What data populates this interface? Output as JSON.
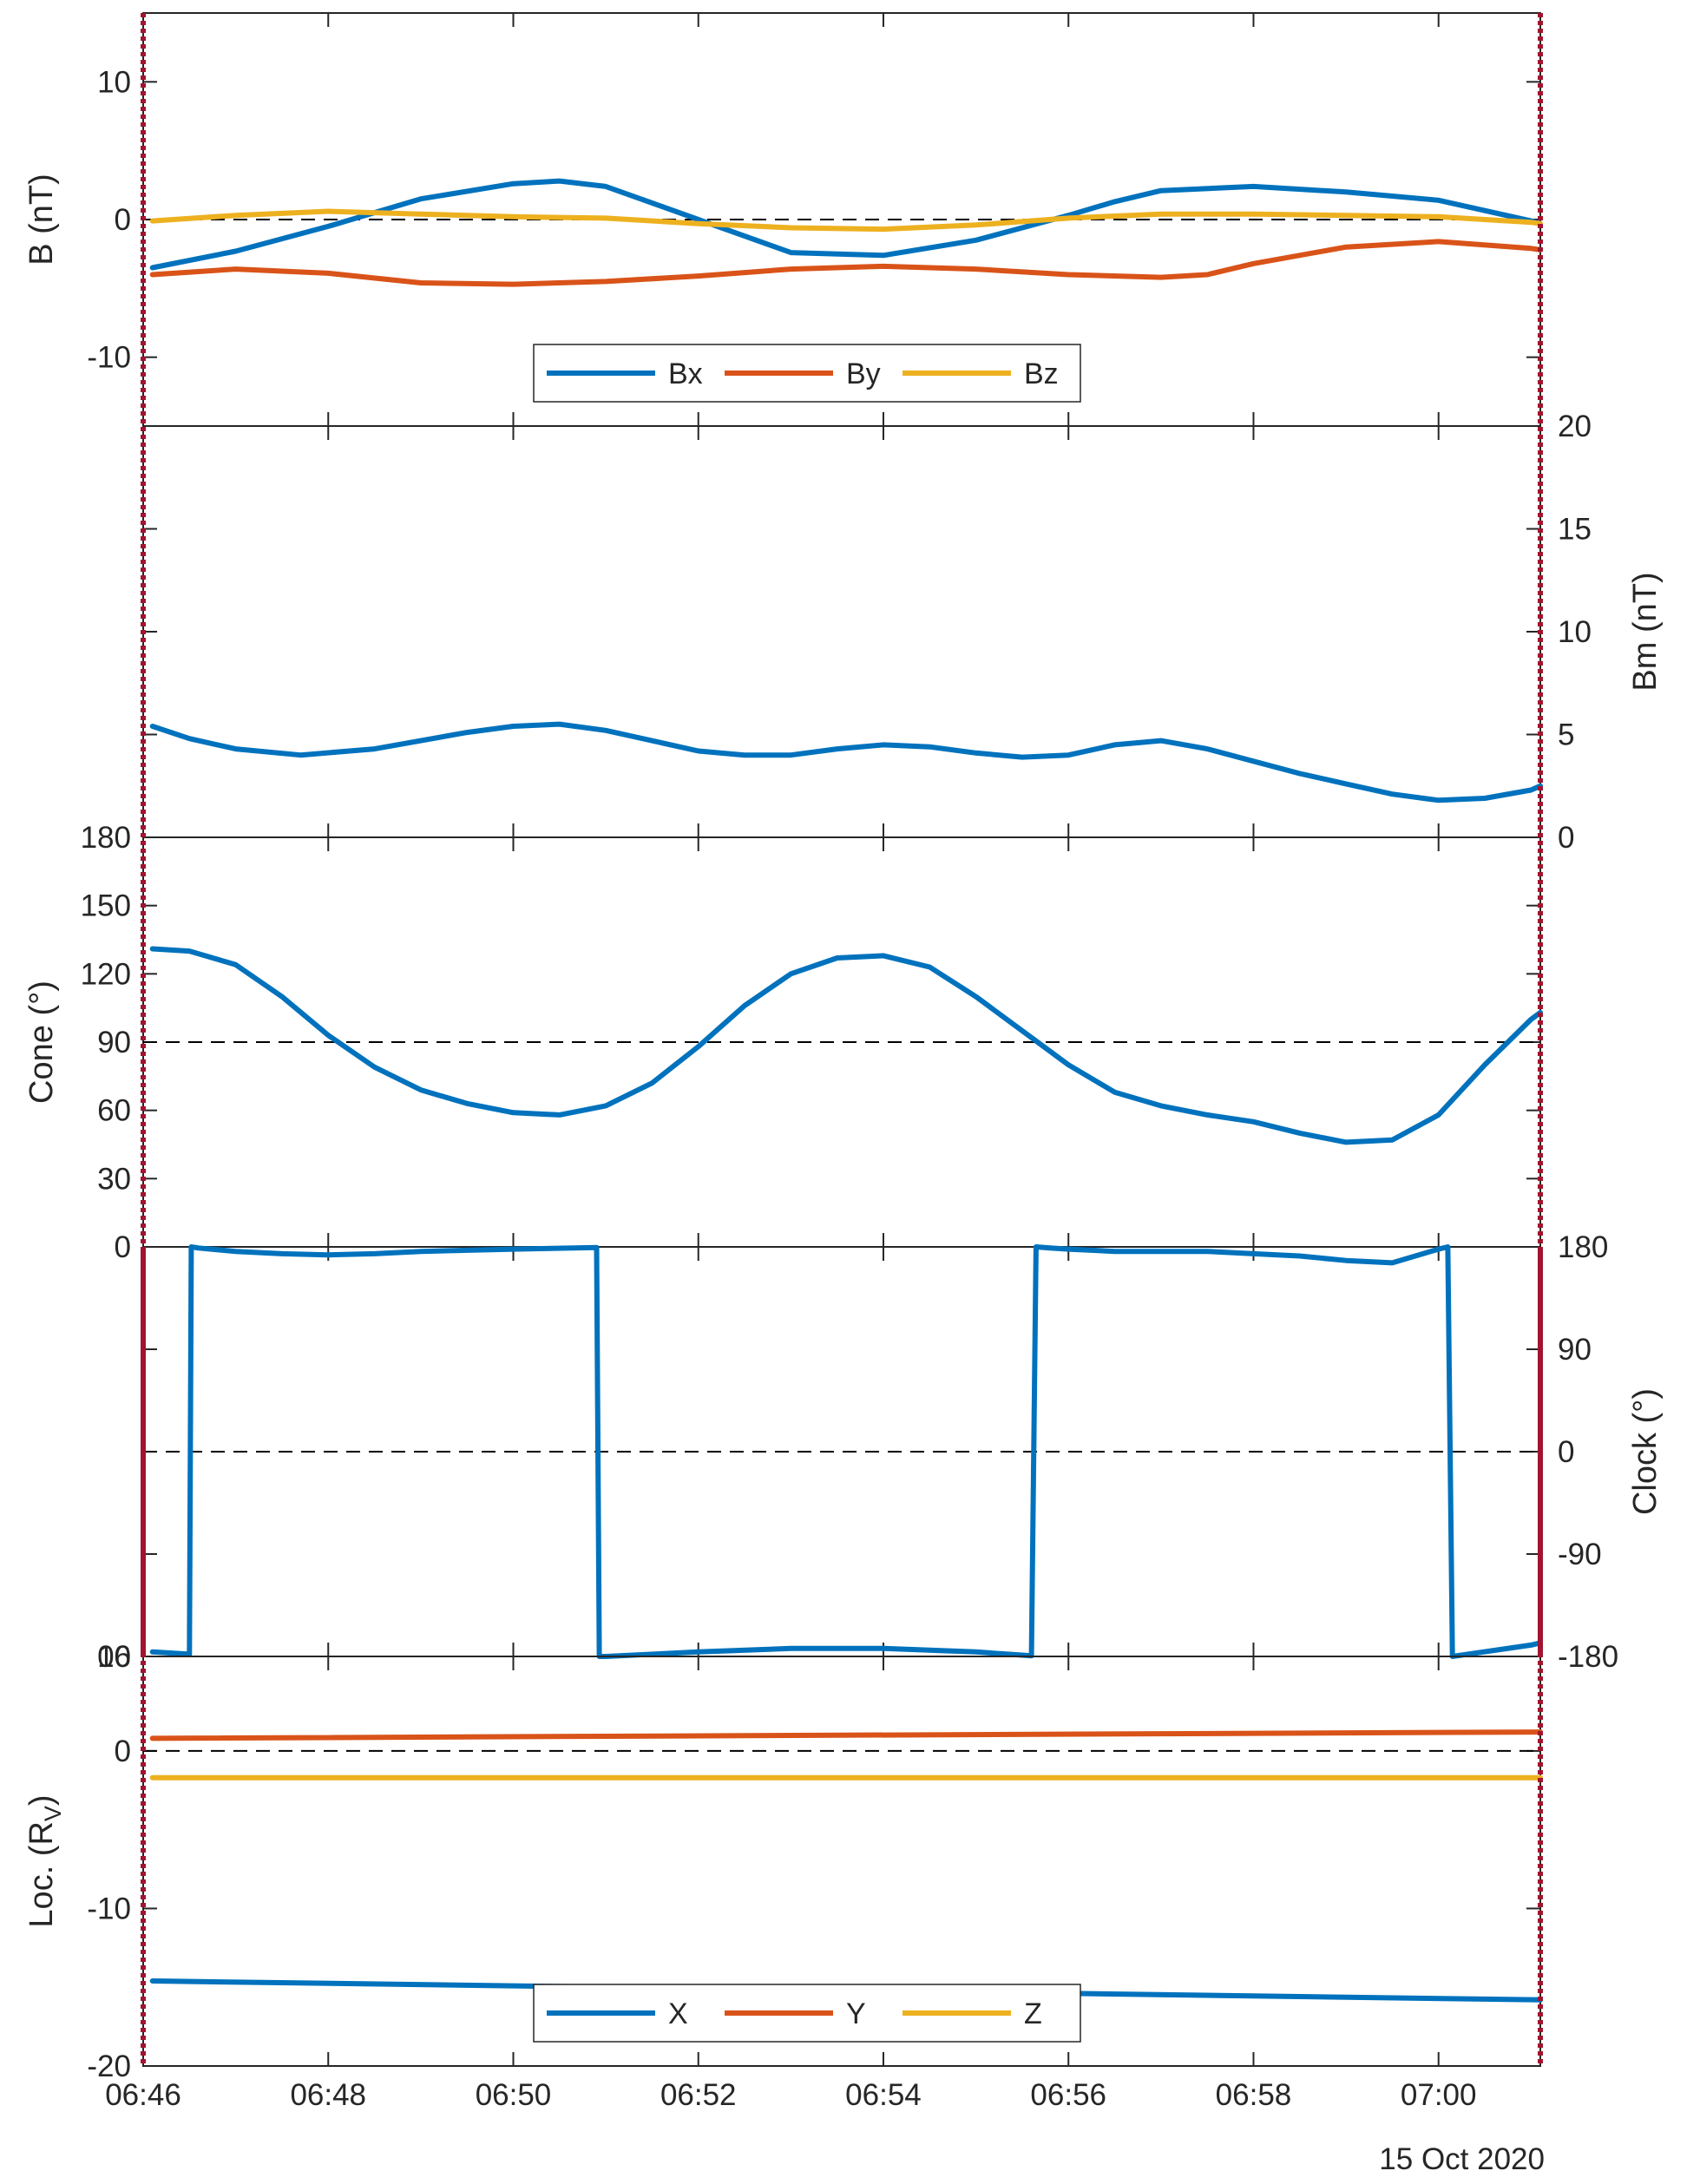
{
  "figure": {
    "date": "15 Oct 2020",
    "colors": {
      "blue": "#0072BD",
      "orange": "#D95319",
      "yellow": "#EDB120",
      "marker": "#A2142F",
      "axis": "#262626",
      "ref": "#000000"
    }
  },
  "chart_data": [
    {
      "id": "b",
      "type": "line",
      "ylabel": "B (nT)",
      "yaxis_side": "left",
      "ylim": [
        -15,
        15
      ],
      "yticks": [
        -10,
        0,
        10
      ],
      "yticklabels": [
        "-10",
        "0",
        "10"
      ],
      "refline": 0,
      "xlim": [
        46,
        61.1
      ],
      "legend": {
        "position": "lower-center"
      },
      "series": [
        {
          "name": "Bx",
          "color": "blue",
          "x": [
            46.1,
            47,
            48,
            49,
            50,
            50.5,
            51,
            52,
            53,
            54,
            55,
            56,
            56.5,
            57,
            58,
            59,
            60,
            61,
            61.1
          ],
          "y": [
            -3.5,
            -2.3,
            -0.5,
            1.5,
            2.6,
            2.8,
            2.4,
            0,
            -2.4,
            -2.6,
            -1.5,
            0.3,
            1.3,
            2.1,
            2.4,
            2.0,
            1.4,
            -0.1,
            -0.3
          ]
        },
        {
          "name": "By",
          "color": "orange",
          "x": [
            46.1,
            47,
            48,
            49,
            50,
            51,
            52,
            53,
            54,
            55,
            56,
            57,
            57.5,
            58,
            59,
            60,
            61,
            61.1
          ],
          "y": [
            -4.0,
            -3.6,
            -3.9,
            -4.6,
            -4.7,
            -4.5,
            -4.1,
            -3.6,
            -3.4,
            -3.6,
            -4.0,
            -4.2,
            -4.0,
            -3.2,
            -2.0,
            -1.6,
            -2.1,
            -2.2
          ]
        },
        {
          "name": "Bz",
          "color": "yellow",
          "x": [
            46.1,
            47,
            48,
            49,
            50,
            51,
            52,
            53,
            54,
            55,
            56,
            57,
            58,
            59,
            60,
            61,
            61.1
          ],
          "y": [
            -0.1,
            0.3,
            0.6,
            0.4,
            0.2,
            0.1,
            -0.3,
            -0.6,
            -0.7,
            -0.4,
            0.1,
            0.4,
            0.4,
            0.3,
            0.2,
            -0.2,
            -0.3
          ]
        }
      ]
    },
    {
      "id": "bm",
      "type": "line",
      "ylabel": "Bm (nT)",
      "yaxis_side": "right",
      "ylim": [
        0,
        20
      ],
      "yticks": [
        0,
        5,
        10,
        15,
        20
      ],
      "yticklabels": [
        "0",
        "5",
        "10",
        "15",
        "20"
      ],
      "xlim": [
        46,
        61.1
      ],
      "series": [
        {
          "name": "Bm",
          "color": "blue",
          "x": [
            46.1,
            46.5,
            47,
            47.7,
            48.5,
            49.5,
            50,
            50.5,
            51,
            52,
            52.5,
            53,
            53.5,
            54,
            54.5,
            55,
            55.5,
            56,
            56.5,
            57,
            57.5,
            58,
            58.5,
            59,
            59.5,
            60,
            60.5,
            61,
            61.1
          ],
          "y": [
            5.4,
            4.8,
            4.3,
            4.0,
            4.3,
            5.1,
            5.4,
            5.5,
            5.2,
            4.2,
            4.0,
            4.0,
            4.3,
            4.5,
            4.4,
            4.1,
            3.9,
            4.0,
            4.5,
            4.7,
            4.3,
            3.7,
            3.1,
            2.6,
            2.1,
            1.8,
            1.9,
            2.3,
            2.5
          ]
        }
      ]
    },
    {
      "id": "cone",
      "type": "line",
      "ylabel": "Cone (°)",
      "yaxis_side": "left",
      "ylim": [
        0,
        180
      ],
      "yticks": [
        30,
        60,
        90,
        120,
        150,
        180
      ],
      "yticklabels": [
        "30",
        "60",
        "90",
        "120",
        "150",
        "180"
      ],
      "refline": 90,
      "xlim": [
        46,
        61.1
      ],
      "series": [
        {
          "name": "Cone",
          "color": "blue",
          "x": [
            46.1,
            46.5,
            47,
            47.5,
            48,
            48.5,
            49,
            49.5,
            50,
            50.5,
            51,
            51.5,
            52,
            52.5,
            53,
            53.5,
            54,
            54.5,
            55,
            55.5,
            56,
            56.5,
            57,
            57.5,
            58,
            58.5,
            59,
            59.5,
            60,
            60.5,
            61,
            61.1
          ],
          "y": [
            131,
            130,
            124,
            110,
            93,
            79,
            69,
            63,
            59,
            58,
            62,
            72,
            88,
            106,
            120,
            127,
            128,
            123,
            110,
            95,
            80,
            68,
            62,
            58,
            55,
            50,
            46,
            47,
            58,
            80,
            100,
            103
          ]
        }
      ]
    },
    {
      "id": "clock",
      "type": "line",
      "ylabel": "Clock (°)",
      "yaxis_side": "right",
      "ylim": [
        -180,
        180
      ],
      "yticks": [
        -180,
        -90,
        0,
        90,
        180
      ],
      "yticklabels": [
        "-180",
        "-90",
        "0",
        "90",
        "180"
      ],
      "refline": 0,
      "overlap_labels": {
        "top": "0",
        "bottom": "10"
      },
      "xlim": [
        46,
        61.1
      ],
      "series": [
        {
          "name": "Clock",
          "color": "blue",
          "x": [
            46.1,
            46.5,
            46.52,
            46.6,
            47,
            47.5,
            48,
            48.5,
            49,
            50,
            50.9,
            50.93,
            51,
            52,
            53,
            54,
            55,
            55.6,
            55.65,
            55.8,
            56,
            56.5,
            57,
            57.5,
            58,
            58.5,
            59,
            59.5,
            60,
            60.1,
            60.15,
            61,
            61.1
          ],
          "y": [
            -176,
            -178,
            180,
            179,
            176,
            174,
            173,
            174,
            176,
            178,
            179.5,
            -180,
            -180,
            -176,
            -173,
            -173,
            -176,
            -179.5,
            180,
            179,
            178,
            176,
            176,
            176,
            174,
            172,
            168,
            166,
            178,
            180,
            -180,
            -170,
            -168
          ]
        }
      ]
    },
    {
      "id": "loc",
      "type": "line",
      "ylabel": "Loc. (RV)",
      "ylabel_main": "Loc. (R",
      "ylabel_sub": "V",
      "ylabel_close": ")",
      "yaxis_side": "left",
      "ylim": [
        -20,
        6
      ],
      "yticks": [
        -20,
        -10,
        0
      ],
      "yticklabels": [
        "-20",
        "-10",
        "0"
      ],
      "overlap_labels": {
        "top": "06"
      },
      "refline": 0,
      "xlim": [
        46,
        61.1
      ],
      "xticks": [
        46,
        48,
        50,
        52,
        54,
        56,
        58,
        60
      ],
      "xticklabels": [
        "06:46",
        "06:48",
        "06:50",
        "06:52",
        "06:54",
        "06:56",
        "06:58",
        "07:00"
      ],
      "legend": {
        "position": "lower-center"
      },
      "series": [
        {
          "name": "X",
          "color": "blue",
          "x": [
            46.1,
            61.1
          ],
          "y": [
            -14.6,
            -15.8
          ]
        },
        {
          "name": "Y",
          "color": "orange",
          "x": [
            46.1,
            61.1
          ],
          "y": [
            0.8,
            1.2
          ]
        },
        {
          "name": "Z",
          "color": "yellow",
          "x": [
            46.1,
            61.1
          ],
          "y": [
            -1.7,
            -1.7
          ]
        }
      ]
    }
  ]
}
